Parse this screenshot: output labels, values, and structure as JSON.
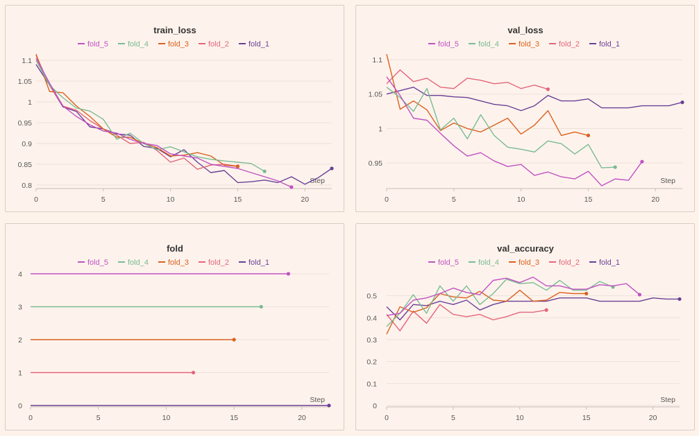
{
  "colors": {
    "fold_5": "#c051c4",
    "fold_4": "#79bb93",
    "fold_3": "#d9611f",
    "fold_2": "#e3657b",
    "fold_1": "#6a3f97"
  },
  "chart_data": [
    {
      "type": "line",
      "title": "train_loss",
      "xlabel": "Step",
      "xlim": [
        0,
        22
      ],
      "ylim": [
        0.795,
        1.115
      ],
      "xticks": [
        0,
        5,
        10,
        15,
        20
      ],
      "yticks": [
        0.8,
        0.85,
        0.9,
        0.95,
        1,
        1.05,
        1.1
      ],
      "legend": [
        "fold_5",
        "fold_4",
        "fold_3",
        "fold_2",
        "fold_1"
      ],
      "series": [
        {
          "name": "fold_5",
          "x": [
            0,
            1,
            2,
            3,
            4,
            5,
            6,
            7,
            8,
            9,
            10,
            11,
            12,
            13,
            14,
            15,
            16,
            17,
            18,
            19
          ],
          "y": [
            1.105,
            1.045,
            0.99,
            0.965,
            0.945,
            0.93,
            0.925,
            0.91,
            0.9,
            0.895,
            0.875,
            0.87,
            0.865,
            0.85,
            0.845,
            0.84,
            0.83,
            0.82,
            0.81,
            0.795
          ]
        },
        {
          "name": "fold_4",
          "x": [
            0,
            1,
            2,
            3,
            4,
            5,
            6,
            7,
            8,
            9,
            10,
            11,
            12,
            13,
            14,
            15,
            16,
            17
          ],
          "y": [
            1.1,
            1.04,
            1.01,
            0.985,
            0.978,
            0.958,
            0.91,
            0.925,
            0.9,
            0.885,
            0.892,
            0.88,
            0.868,
            0.862,
            0.858,
            0.855,
            0.852,
            0.833
          ]
        },
        {
          "name": "fold_3",
          "x": [
            0,
            1,
            2,
            3,
            4,
            5,
            6,
            7,
            8,
            9,
            10,
            11,
            12,
            13,
            14,
            15
          ],
          "y": [
            1.115,
            1.025,
            1.022,
            0.99,
            0.965,
            0.935,
            0.915,
            0.915,
            0.9,
            0.89,
            0.87,
            0.872,
            0.878,
            0.87,
            0.848,
            0.845
          ]
        },
        {
          "name": "fold_2",
          "x": [
            0,
            1,
            2,
            3,
            4,
            5,
            6,
            7,
            8,
            9,
            10,
            11,
            12,
            13,
            14,
            15
          ],
          "y": [
            1.112,
            1.04,
            0.99,
            0.98,
            0.955,
            0.935,
            0.92,
            0.9,
            0.903,
            0.883,
            0.855,
            0.865,
            0.838,
            0.848,
            0.85,
            0.845
          ]
        },
        {
          "name": "fold_1",
          "x": [
            0,
            1,
            2,
            3,
            4,
            5,
            6,
            7,
            8,
            9,
            10,
            11,
            12,
            13,
            14,
            15,
            16,
            17,
            18,
            19,
            20,
            21,
            22
          ],
          "y": [
            1.09,
            1.04,
            0.988,
            0.977,
            0.94,
            0.935,
            0.923,
            0.92,
            0.893,
            0.888,
            0.868,
            0.885,
            0.855,
            0.83,
            0.835,
            0.806,
            0.808,
            0.812,
            0.806,
            0.82,
            0.802,
            0.818,
            0.84
          ]
        }
      ]
    },
    {
      "type": "line",
      "title": "val_loss",
      "xlabel": "Step",
      "xlim": [
        0,
        22
      ],
      "ylim": [
        0.915,
        1.108
      ],
      "xticks": [
        0,
        5,
        10,
        15,
        20
      ],
      "yticks": [
        0.95,
        1,
        1.05,
        1.1
      ],
      "legend": [
        "fold_5",
        "fold_4",
        "fold_3",
        "fold_2",
        "fold_1"
      ],
      "series": [
        {
          "name": "fold_5",
          "x": [
            0,
            1,
            2,
            3,
            4,
            5,
            6,
            7,
            8,
            9,
            10,
            11,
            12,
            13,
            14,
            15,
            16,
            17,
            18,
            19
          ],
          "y": [
            1.075,
            1.048,
            1.015,
            1.012,
            0.993,
            0.975,
            0.96,
            0.965,
            0.953,
            0.945,
            0.948,
            0.932,
            0.937,
            0.93,
            0.927,
            0.938,
            0.917,
            0.927,
            0.925,
            0.952
          ]
        },
        {
          "name": "fold_4",
          "x": [
            0,
            1,
            2,
            3,
            4,
            5,
            6,
            7,
            8,
            9,
            10,
            11,
            12,
            13,
            14,
            15,
            16,
            17
          ],
          "y": [
            1.06,
            1.045,
            1.025,
            1.058,
            0.998,
            1.015,
            0.985,
            1.02,
            0.99,
            0.973,
            0.97,
            0.966,
            0.982,
            0.978,
            0.963,
            0.977,
            0.943,
            0.944
          ]
        },
        {
          "name": "fold_3",
          "x": [
            0,
            1,
            2,
            3,
            4,
            5,
            6,
            7,
            8,
            9,
            10,
            11,
            12,
            13,
            14,
            15
          ],
          "y": [
            1.108,
            1.028,
            1.04,
            1.027,
            0.997,
            1.008,
            1.0,
            0.995,
            1.005,
            1.015,
            0.992,
            1.005,
            1.026,
            0.99,
            0.995,
            0.99
          ]
        },
        {
          "name": "fold_2",
          "x": [
            0,
            1,
            2,
            3,
            4,
            5,
            6,
            7,
            8,
            9,
            10,
            11,
            12
          ],
          "y": [
            1.065,
            1.085,
            1.068,
            1.073,
            1.06,
            1.058,
            1.073,
            1.07,
            1.065,
            1.067,
            1.058,
            1.063,
            1.057
          ]
        },
        {
          "name": "fold_1",
          "x": [
            0,
            1,
            2,
            3,
            4,
            5,
            6,
            7,
            8,
            9,
            10,
            11,
            12,
            13,
            14,
            15,
            16,
            17,
            18,
            19,
            20,
            21,
            22
          ],
          "y": [
            1.05,
            1.055,
            1.06,
            1.048,
            1.048,
            1.046,
            1.045,
            1.04,
            1.035,
            1.033,
            1.026,
            1.033,
            1.048,
            1.04,
            1.04,
            1.043,
            1.03,
            1.03,
            1.03,
            1.033,
            1.033,
            1.033,
            1.038
          ]
        }
      ]
    },
    {
      "type": "line",
      "title": "fold",
      "xlabel": "Step",
      "xlim": [
        0,
        22
      ],
      "ylim": [
        0,
        4
      ],
      "xticks": [
        0,
        5,
        10,
        15,
        20
      ],
      "yticks": [
        0,
        1,
        2,
        3,
        4
      ],
      "legend": [
        "fold_5",
        "fold_4",
        "fold_3",
        "fold_2",
        "fold_1"
      ],
      "series": [
        {
          "name": "fold_5",
          "x": [
            0,
            19
          ],
          "y": [
            4,
            4
          ]
        },
        {
          "name": "fold_4",
          "x": [
            0,
            17
          ],
          "y": [
            3,
            3
          ]
        },
        {
          "name": "fold_3",
          "x": [
            0,
            15
          ],
          "y": [
            2,
            2
          ]
        },
        {
          "name": "fold_2",
          "x": [
            0,
            12
          ],
          "y": [
            1,
            1
          ]
        },
        {
          "name": "fold_1",
          "x": [
            0,
            22
          ],
          "y": [
            0,
            0
          ]
        }
      ]
    },
    {
      "type": "line",
      "title": "val_accuracy",
      "xlabel": "Step",
      "xlim": [
        0,
        22
      ],
      "ylim": [
        0,
        0.6
      ],
      "xticks": [
        0,
        5,
        10,
        15,
        20
      ],
      "yticks": [
        0,
        0.1,
        0.2,
        0.3,
        0.4,
        0.5
      ],
      "legend": [
        "fold_5",
        "fold_4",
        "fold_3",
        "fold_2",
        "fold_1"
      ],
      "series": [
        {
          "name": "fold_5",
          "x": [
            0,
            1,
            2,
            3,
            4,
            5,
            6,
            7,
            8,
            9,
            10,
            11,
            12,
            13,
            14,
            15,
            16,
            17,
            18,
            19
          ],
          "y": [
            0.41,
            0.42,
            0.48,
            0.49,
            0.51,
            0.535,
            0.515,
            0.505,
            0.57,
            0.58,
            0.56,
            0.585,
            0.545,
            0.545,
            0.53,
            0.53,
            0.55,
            0.545,
            0.555,
            0.505
          ]
        },
        {
          "name": "fold_4",
          "x": [
            0,
            1,
            2,
            3,
            4,
            5,
            6,
            7,
            8,
            9,
            10,
            11,
            12,
            13,
            14,
            15,
            16,
            17
          ],
          "y": [
            0.36,
            0.42,
            0.505,
            0.42,
            0.545,
            0.475,
            0.545,
            0.46,
            0.51,
            0.575,
            0.555,
            0.56,
            0.525,
            0.57,
            0.525,
            0.525,
            0.565,
            0.54
          ]
        },
        {
          "name": "fold_3",
          "x": [
            0,
            1,
            2,
            3,
            4,
            5,
            6,
            7,
            8,
            9,
            10,
            11,
            12,
            13,
            14,
            15
          ],
          "y": [
            0.325,
            0.45,
            0.425,
            0.445,
            0.51,
            0.495,
            0.49,
            0.52,
            0.48,
            0.475,
            0.525,
            0.475,
            0.48,
            0.515,
            0.51,
            0.51
          ]
        },
        {
          "name": "fold_2",
          "x": [
            0,
            1,
            2,
            3,
            4,
            5,
            6,
            7,
            8,
            9,
            10,
            11,
            12
          ],
          "y": [
            0.415,
            0.34,
            0.43,
            0.375,
            0.46,
            0.415,
            0.405,
            0.415,
            0.39,
            0.405,
            0.425,
            0.425,
            0.435
          ]
        },
        {
          "name": "fold_1",
          "x": [
            0,
            1,
            2,
            3,
            4,
            5,
            6,
            7,
            8,
            9,
            10,
            11,
            12,
            13,
            14,
            15,
            16,
            17,
            18,
            19,
            20,
            21,
            22
          ],
          "y": [
            0.45,
            0.39,
            0.46,
            0.455,
            0.475,
            0.46,
            0.48,
            0.435,
            0.46,
            0.475,
            0.475,
            0.475,
            0.475,
            0.49,
            0.49,
            0.49,
            0.475,
            0.475,
            0.475,
            0.475,
            0.49,
            0.485,
            0.485
          ]
        }
      ]
    }
  ]
}
